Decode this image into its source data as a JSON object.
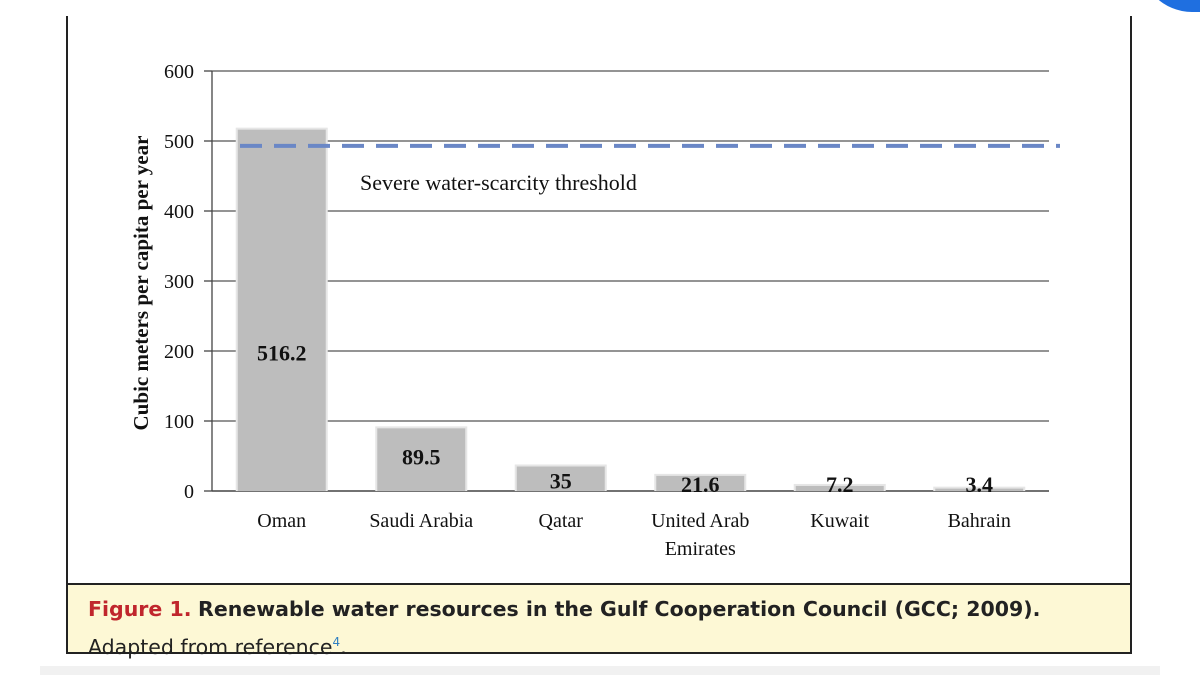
{
  "chart_data": {
    "type": "bar",
    "categories": [
      "Oman",
      "Saudi Arabia",
      "Qatar",
      "United Arab Emirates",
      "Kuwait",
      "Bahrain"
    ],
    "category_lines": [
      [
        "Oman"
      ],
      [
        "Saudi Arabia"
      ],
      [
        "Qatar"
      ],
      [
        "United Arab",
        "Emirates"
      ],
      [
        "Kuwait"
      ],
      [
        "Bahrain"
      ]
    ],
    "values": [
      516.2,
      89.5,
      35,
      21.6,
      7.2,
      3.4
    ],
    "value_labels": [
      "516.2",
      "89.5",
      "35",
      "21.6",
      "7.2",
      "3.4"
    ],
    "ylabel": "Cubic meters per capita per year",
    "ylim": [
      0,
      600
    ],
    "yticks": [
      0,
      100,
      200,
      300,
      400,
      500,
      600
    ],
    "grid": true,
    "bar_color": "#bdbdbd",
    "threshold": {
      "value": 493,
      "label": "Severe water-scarcity threshold",
      "color": "#6a87c6",
      "style": "dashed"
    }
  },
  "caption": {
    "label": "Figure 1.",
    "title": "Renewable water resources in the Gulf Cooperation Council (GCC; 2009).",
    "text": "Adapted from reference",
    "ref": "4",
    "end": "."
  }
}
